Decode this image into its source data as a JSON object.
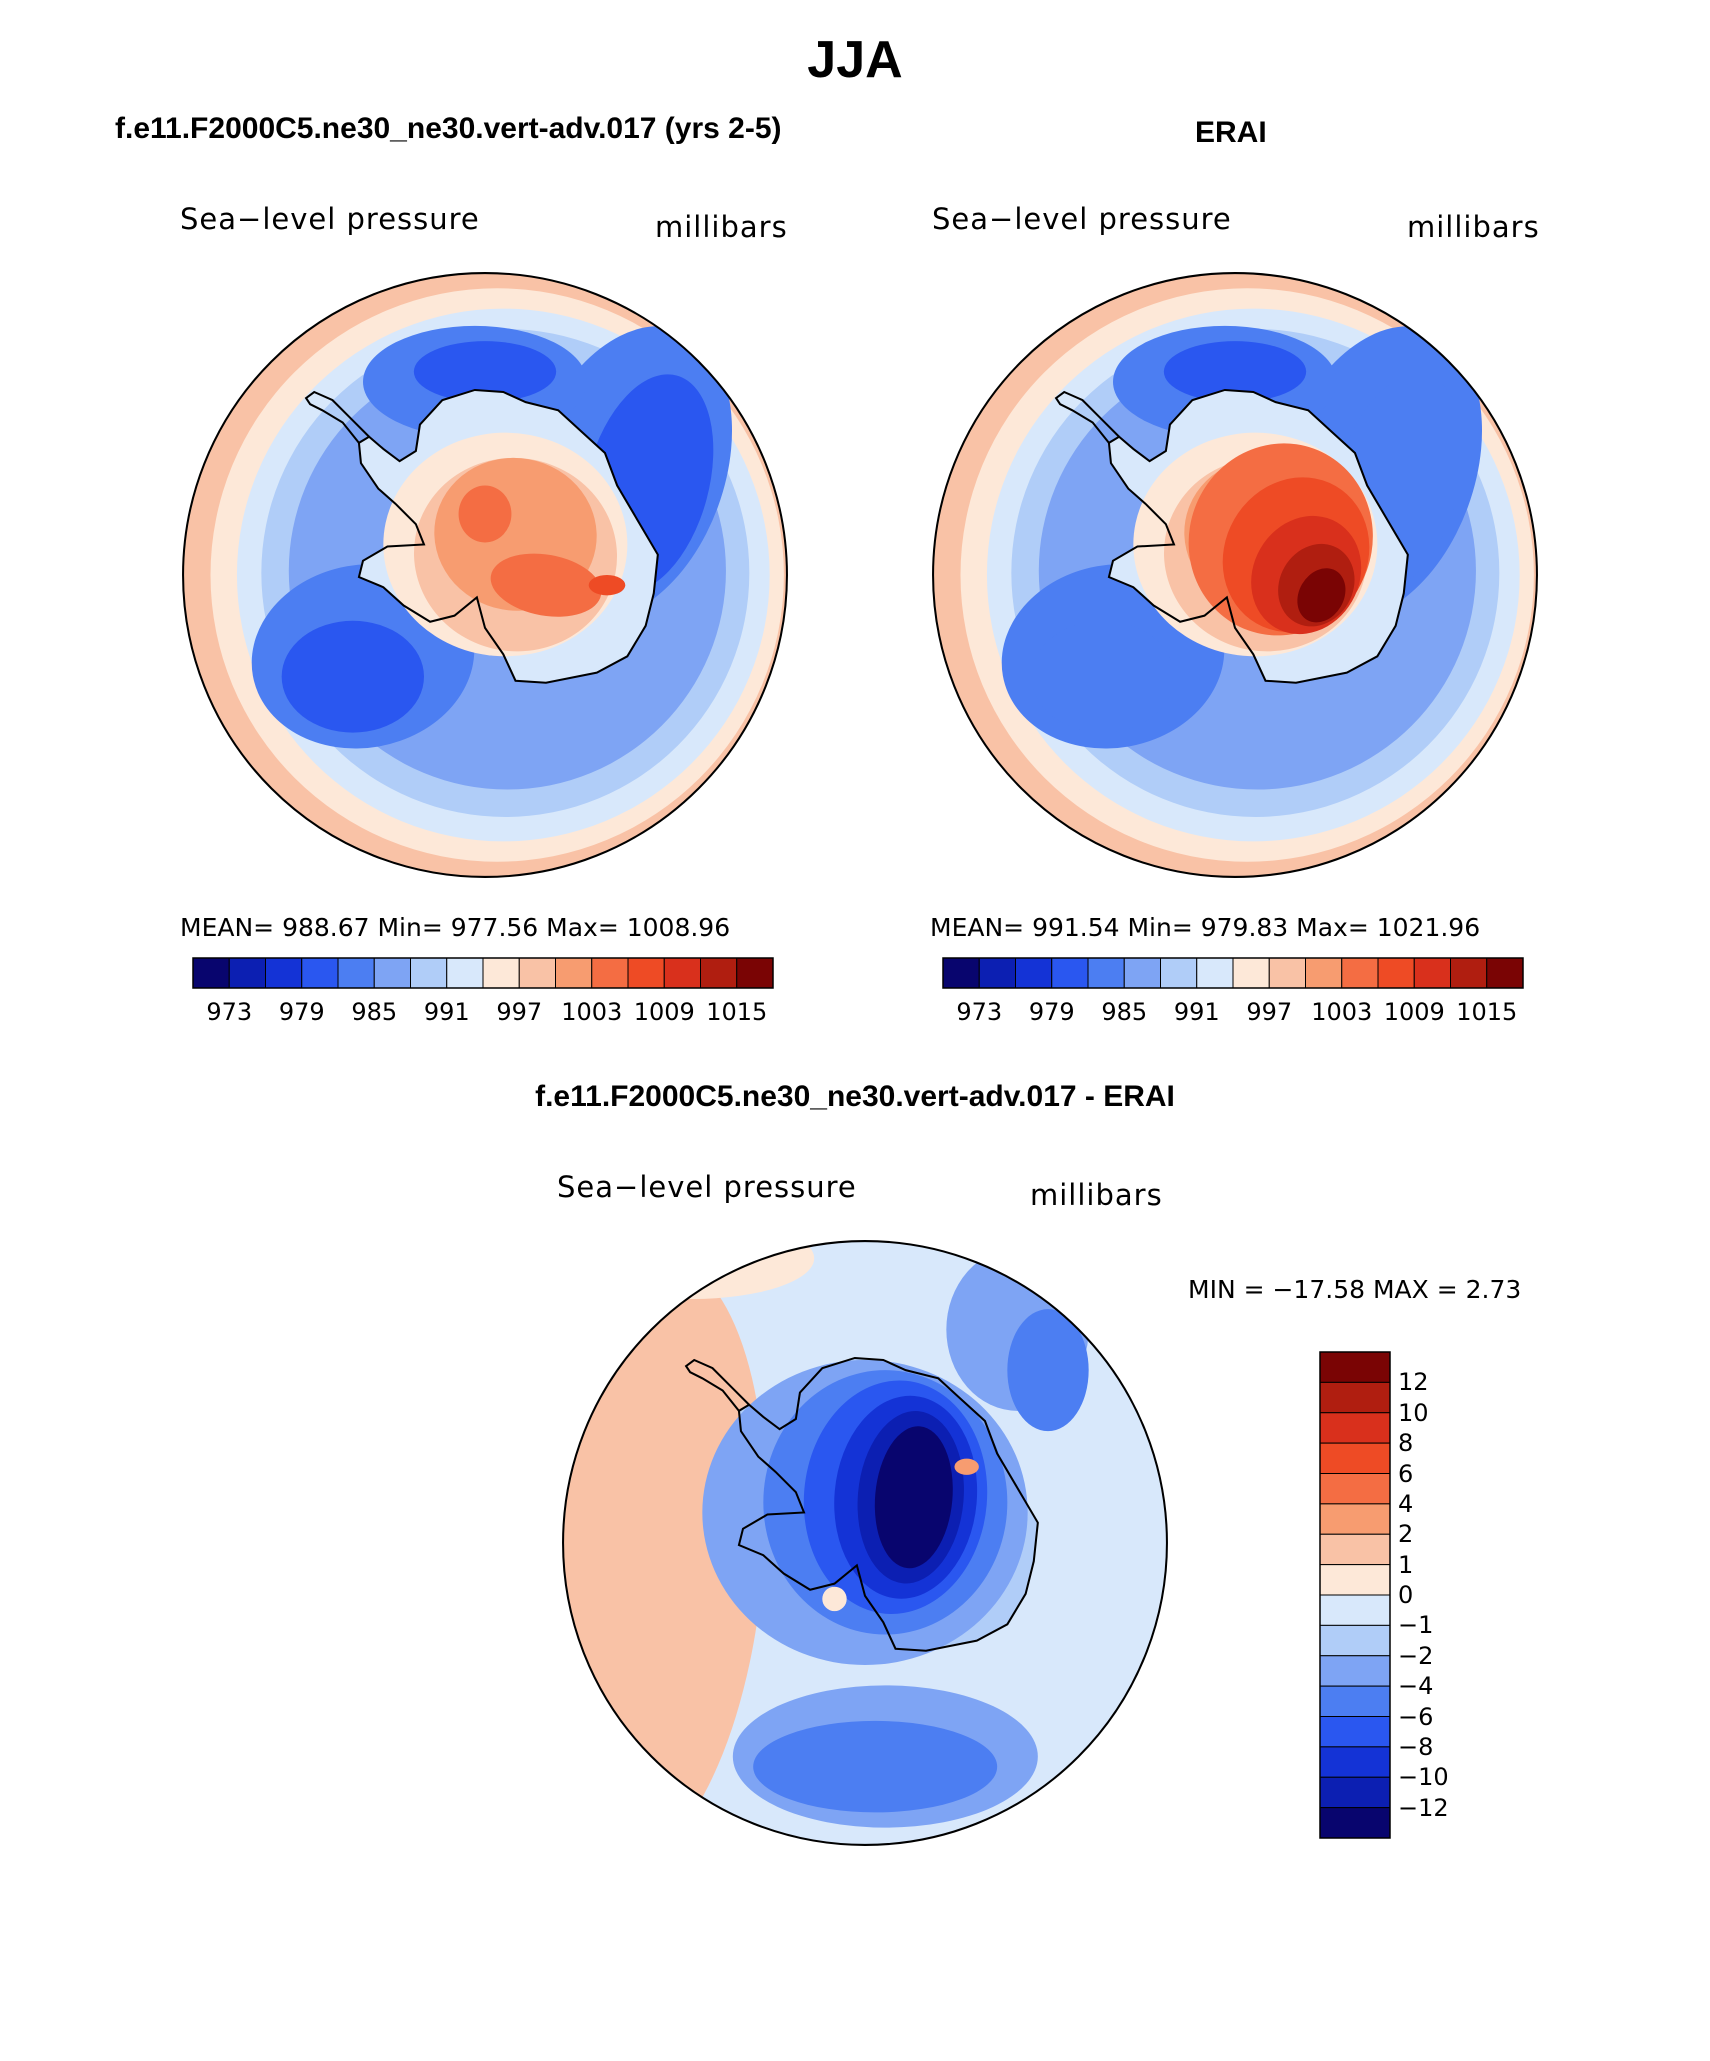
{
  "figure": {
    "title": "JJA",
    "panel_model": {
      "title": "f.e11.F2000C5.ne30_ne30.vert-adv.017 (yrs 2-5)",
      "variable": "Sea−level pressure",
      "units": "millibars",
      "stats": "MEAN=  988.67    Min=  977.56    Max=  1008.96"
    },
    "panel_obs": {
      "title": "ERAI",
      "variable": "Sea−level pressure",
      "units": "millibars",
      "stats": "MEAN=  991.54    Min=  979.83    Max=  1021.96"
    },
    "panel_diff": {
      "title": "f.e11.F2000C5.ne30_ne30.vert-adv.017 - ERAI",
      "variable": "Sea−level pressure",
      "units": "millibars",
      "stats": "MIN  =  −17.58  MAX  =      2.73"
    }
  },
  "colors": {
    "abs_scale": [
      "#08056e",
      "#0c1fb2",
      "#1433d6",
      "#2a57f0",
      "#4c7ef2",
      "#7ea4f4",
      "#b0cdf8",
      "#d8e8fb",
      "#fde8d8",
      "#f9c2a6",
      "#f79c70",
      "#f46d43",
      "#ee4b25",
      "#d9301c",
      "#b01e10",
      "#7a0404"
    ],
    "diff_scale": [
      "#08056e",
      "#0c1fb2",
      "#1433d6",
      "#2a57f0",
      "#4c7ef2",
      "#7ea4f4",
      "#b0cdf8",
      "#d8e8fb",
      "#fde8d8",
      "#f9c2a6",
      "#f79c70",
      "#f46d43",
      "#ee4b25",
      "#d9301c",
      "#b01e10",
      "#7a0404"
    ]
  },
  "chart_data": [
    {
      "type": "heatmap",
      "title": "f.e11.F2000C5.ne30_ne30.vert-adv.017 (yrs 2-5)",
      "subtitle": "Sea-level pressure (millibars), JJA, south polar stereographic",
      "mean": 988.67,
      "min": 977.56,
      "max": 1008.96,
      "colorbar_levels": [
        970,
        973,
        976,
        979,
        982,
        985,
        988,
        991,
        994,
        997,
        1000,
        1003,
        1006,
        1009,
        1012,
        1015
      ],
      "colorbar_tick_labels": [
        "973",
        "979",
        "985",
        "991",
        "997",
        "1003",
        "1009",
        "1015"
      ]
    },
    {
      "type": "heatmap",
      "title": "ERAI",
      "subtitle": "Sea-level pressure (millibars), JJA, south polar stereographic",
      "mean": 991.54,
      "min": 979.83,
      "max": 1021.96,
      "colorbar_levels": [
        970,
        973,
        976,
        979,
        982,
        985,
        988,
        991,
        994,
        997,
        1000,
        1003,
        1006,
        1009,
        1012,
        1015
      ],
      "colorbar_tick_labels": [
        "973",
        "979",
        "985",
        "991",
        "997",
        "1003",
        "1009",
        "1015"
      ]
    },
    {
      "type": "heatmap",
      "title": "f.e11.F2000C5.ne30_ne30.vert-adv.017 - ERAI",
      "subtitle": "Sea-level pressure difference (millibars)",
      "min": -17.58,
      "max": 2.73,
      "colorbar_tick_labels": [
        "12",
        "10",
        "8",
        "6",
        "4",
        "2",
        "1",
        "0",
        "−1",
        "−2",
        "−4",
        "−6",
        "−8",
        "−10",
        "−12"
      ]
    }
  ]
}
